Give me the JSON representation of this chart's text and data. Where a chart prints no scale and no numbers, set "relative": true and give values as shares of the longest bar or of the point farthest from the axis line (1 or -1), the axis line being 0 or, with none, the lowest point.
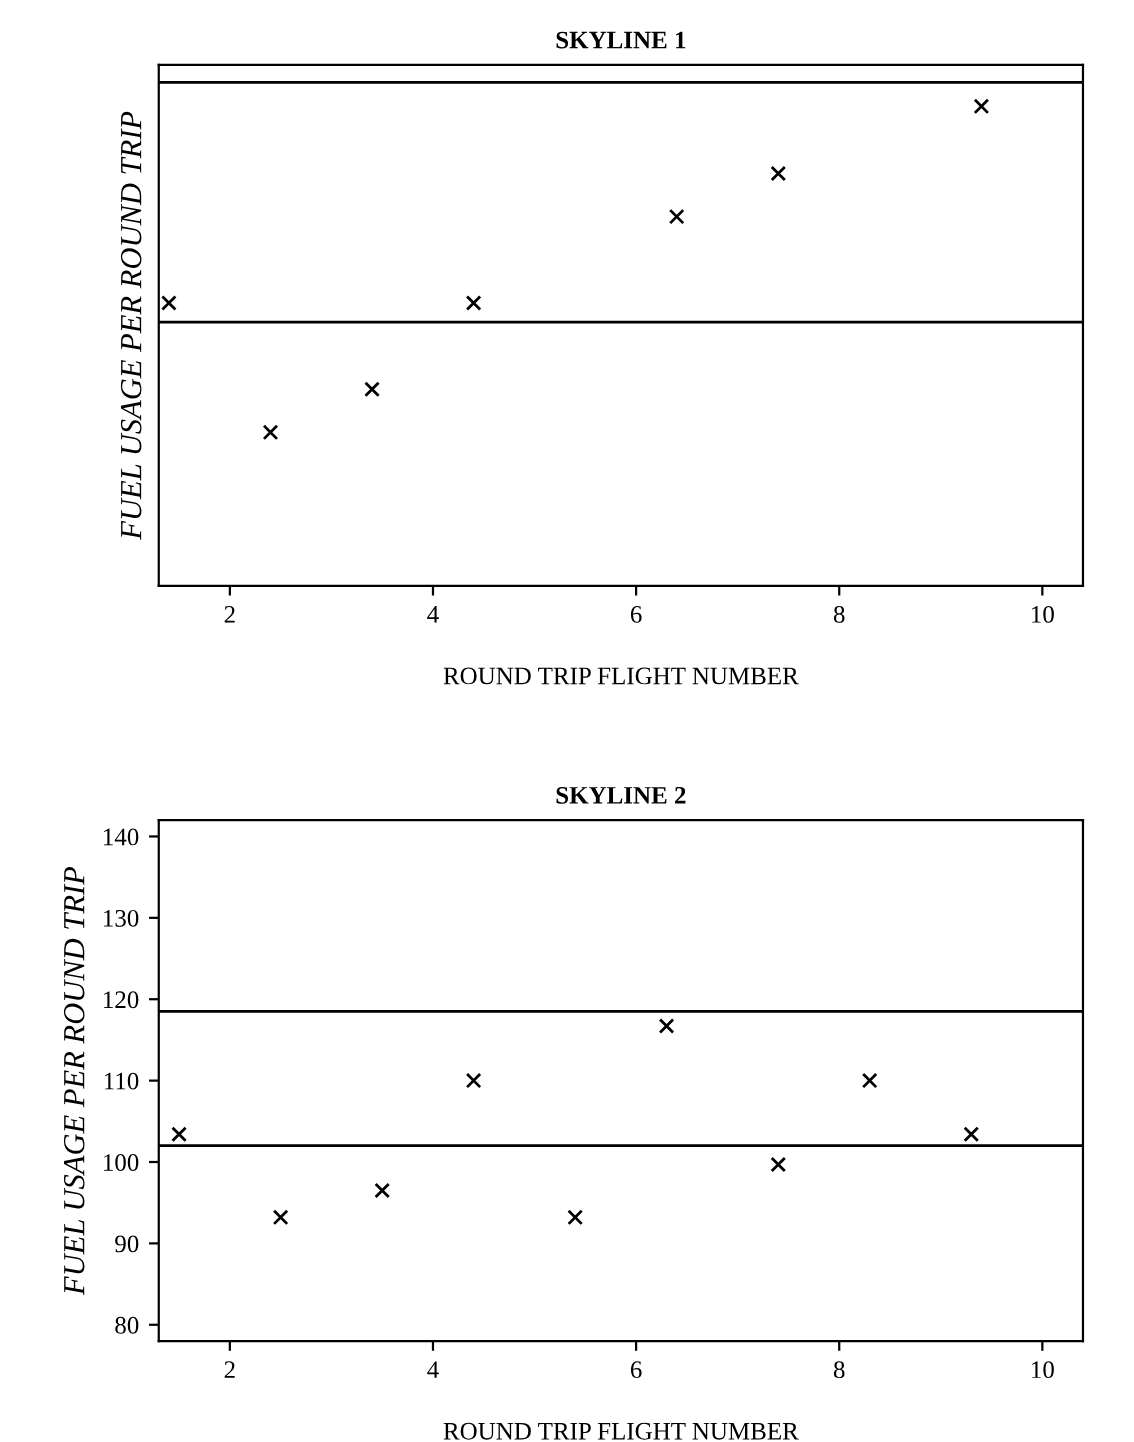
{
  "chart_data": [
    {
      "type": "scatter",
      "title": "SKYLINE 1",
      "xlabel": "ROUND TRIP FLIGHT NUMBER",
      "ylabel": "FUEL USAGE PER ROUND TRIP",
      "relative": true,
      "marker": "cross",
      "grid": false,
      "xlim": [
        1.3,
        10.4
      ],
      "xticks": [
        2,
        4,
        6,
        8,
        10
      ],
      "x": [
        1.4,
        2.4,
        3.4,
        4.4,
        6.4,
        7.4,
        9.4
      ],
      "series": [
        {
          "color": "#000000",
          "values": [
            0.59,
            0.32,
            0.41,
            0.59,
            0.77,
            0.86,
            1.0
          ]
        }
      ],
      "ref_lines": [
        {
          "axis": "y",
          "value": 1.05,
          "color": "#000000"
        },
        {
          "axis": "y",
          "value": 0.55,
          "color": "#000000"
        }
      ]
    },
    {
      "type": "scatter",
      "title": "SKYLINE 2",
      "xlabel": "ROUND TRIP FLIGHT NUMBER",
      "ylabel": "FUEL USAGE PER ROUND TRIP",
      "marker": "cross",
      "grid": false,
      "xlim": [
        1.3,
        10.4
      ],
      "xticks": [
        2,
        4,
        6,
        8,
        10
      ],
      "ylim": [
        78,
        142
      ],
      "yticks": [
        80,
        90,
        100,
        110,
        120,
        130,
        140
      ],
      "x": [
        1.5,
        2.5,
        3.5,
        4.4,
        5.4,
        6.3,
        7.4,
        8.3,
        9.3
      ],
      "series": [
        {
          "color": "#000000",
          "values": [
            103.4,
            93.2,
            96.5,
            110,
            93.2,
            116.7,
            99.7,
            110,
            103.4
          ]
        }
      ],
      "ref_lines": [
        {
          "axis": "y",
          "value": 118.5,
          "color": "#000000"
        },
        {
          "axis": "y",
          "value": 102,
          "color": "#000000"
        }
      ]
    }
  ]
}
